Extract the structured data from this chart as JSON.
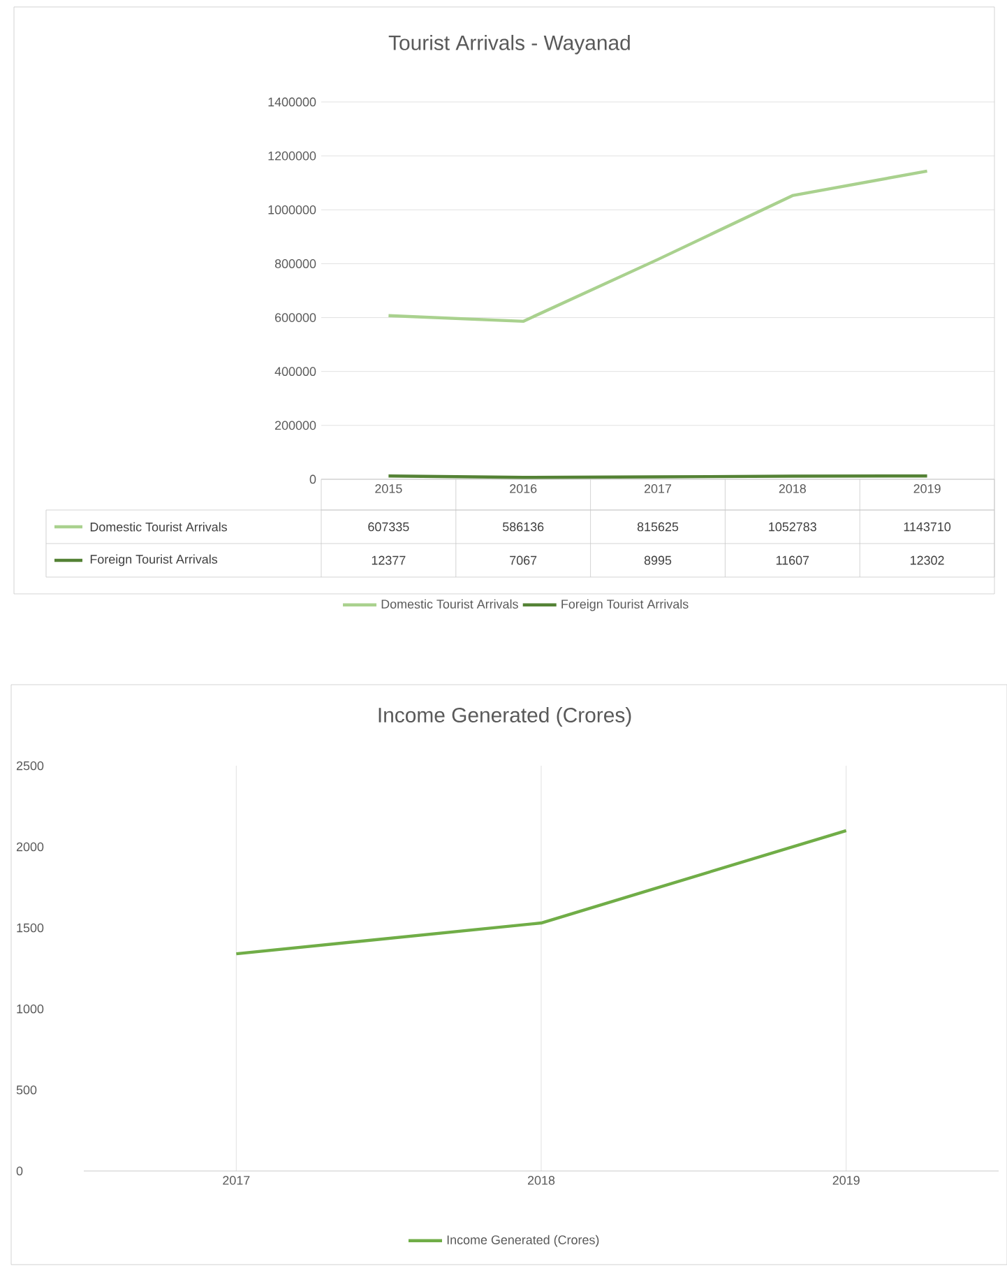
{
  "chart_data": [
    {
      "type": "line",
      "title": "Tourist Arrivals - Wayanad",
      "categories": [
        "2015",
        "2016",
        "2017",
        "2018",
        "2019"
      ],
      "series": [
        {
          "name": "Domestic Tourist Arrivals",
          "color": "#a9d18e",
          "values": [
            607335,
            586136,
            815625,
            1052783,
            1143710
          ]
        },
        {
          "name": "Foreign Tourist Arrivals",
          "color": "#548235",
          "values": [
            12377,
            7067,
            8995,
            11607,
            12302
          ]
        }
      ],
      "ylim": [
        0,
        1400000
      ],
      "yticks": [
        0,
        200000,
        400000,
        600000,
        800000,
        1000000,
        1200000,
        1400000
      ],
      "grid": "y",
      "legend": "bottom",
      "data_labels": true
    },
    {
      "type": "line",
      "title": "Income Generated (Crores)",
      "categories": [
        "2017",
        "2018",
        "2019"
      ],
      "series": [
        {
          "name": "Income Generated (Crores)",
          "color": "#70ad47",
          "values": [
            1340,
            1530,
            2100
          ]
        }
      ],
      "ylim": [
        0,
        2500
      ],
      "yticks": [
        0,
        500,
        1000,
        1500,
        2000,
        2500
      ],
      "grid": "x",
      "legend": "bottom"
    }
  ]
}
